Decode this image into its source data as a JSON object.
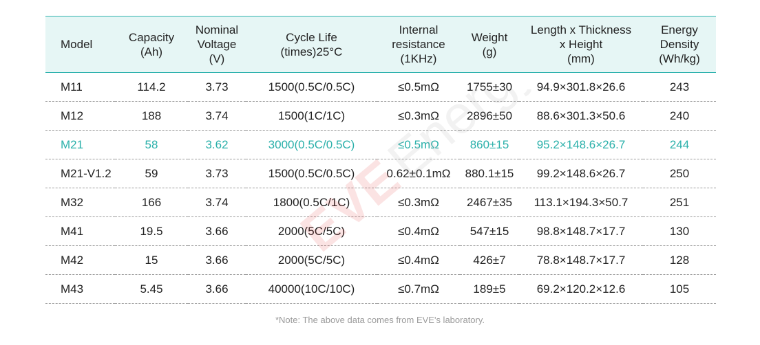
{
  "headers": {
    "model": "Model",
    "capacity": "Capacity\n(Ah)",
    "voltage": "Nominal\nVoltage\n(V)",
    "cycle": "Cycle Life\n(times)25°C",
    "resistance": "Internal\nresistance\n(1KHz)",
    "weight": "Weight\n(g)",
    "dimensions": "Length x Thickness\nx Height\n(mm)",
    "energy": "Energy\nDensity\n(Wh/kg)"
  },
  "rows": [
    {
      "model": "M11",
      "capacity": "114.2",
      "voltage": "3.73",
      "cycle": "1500(0.5C/0.5C)",
      "resistance": "≤0.5mΩ",
      "weight": "1755±30",
      "dimensions": "94.9×301.8×26.6",
      "energy": "243"
    },
    {
      "model": "M12",
      "capacity": "188",
      "voltage": "3.74",
      "cycle": "1500(1C/1C)",
      "resistance": "≤0.3mΩ",
      "weight": "2896±50",
      "dimensions": "88.6×301.3×50.6",
      "energy": "240"
    },
    {
      "model": "M21",
      "capacity": "58",
      "voltage": "3.62",
      "cycle": "3000(0.5C/0.5C)",
      "resistance": "≤0.5mΩ",
      "weight": "860±15",
      "dimensions": "95.2×148.6×26.7",
      "energy": "244"
    },
    {
      "model": "M21-V1.2",
      "capacity": "59",
      "voltage": "3.73",
      "cycle": "1500(0.5C/0.5C)",
      "resistance": "0.62±0.1mΩ",
      "weight": "880.1±15",
      "dimensions": "99.2×148.6×26.7",
      "energy": "250"
    },
    {
      "model": "M32",
      "capacity": "166",
      "voltage": "3.74",
      "cycle": "1800(0.5C/1C)",
      "resistance": "≤0.3mΩ",
      "weight": "2467±35",
      "dimensions": "113.1×194.3×50.7",
      "energy": "251"
    },
    {
      "model": "M41",
      "capacity": "19.5",
      "voltage": "3.66",
      "cycle": "2000(5C/5C)",
      "resistance": "≤0.4mΩ",
      "weight": "547±15",
      "dimensions": "98.8×148.7×17.7",
      "energy": "130"
    },
    {
      "model": "M42",
      "capacity": "15",
      "voltage": "3.66",
      "cycle": "2000(5C/5C)",
      "resistance": "≤0.4mΩ",
      "weight": "426±7",
      "dimensions": "78.8×148.7×17.7",
      "energy": "128"
    },
    {
      "model": "M43",
      "capacity": "5.45",
      "voltage": "3.66",
      "cycle": "40000(10C/10C)",
      "resistance": "≤0.7mΩ",
      "weight": "189±5",
      "dimensions": "69.2×120.2×12.6",
      "energy": "105"
    }
  ],
  "note": "*Note: The above data comes from EVE's laboratory.",
  "watermark": {
    "brand": "EVE",
    "word": "Energy",
    "brand_color": "#e02a2a",
    "word_color": "#9a9a9a"
  },
  "colors": {
    "accent": "#2fb3ae",
    "highlight_text": "#2ab0aa",
    "header_bg": "#e6f6f5"
  }
}
